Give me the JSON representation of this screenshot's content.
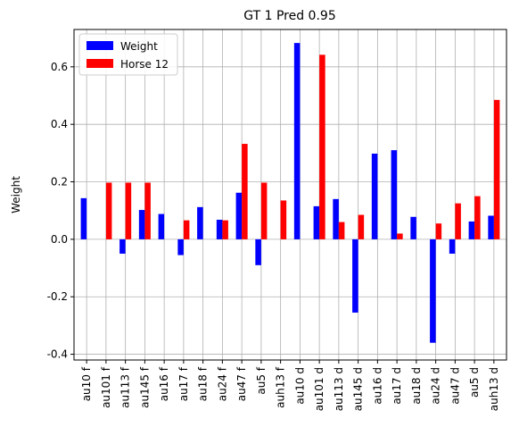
{
  "chart_data": {
    "type": "bar",
    "title": "GT 1 Pred 0.95",
    "xlabel": "",
    "ylabel": "Weight",
    "ylim": [
      -0.42,
      0.73
    ],
    "yticks": [
      "-0.4",
      "-0.2",
      "0.0",
      "0.2",
      "0.4",
      "0.6"
    ],
    "grid": true,
    "legend_position": "upper-left",
    "categories": [
      "au10 f",
      "au101 f",
      "au113 f",
      "au145 f",
      "au16 f",
      "au17 f",
      "au18 f",
      "au24 f",
      "au47 f",
      "au5 f",
      "auh13 f",
      "au10 d",
      "au101 d",
      "au113 d",
      "au145 d",
      "au16 d",
      "au17 d",
      "au18 d",
      "au24 d",
      "au47 d",
      "au5 d",
      "auh13 d"
    ],
    "series": [
      {
        "name": "Weight",
        "color": "#0000ff",
        "values": [
          0.143,
          0.0,
          -0.05,
          0.102,
          0.088,
          -0.055,
          0.112,
          0.068,
          0.162,
          -0.09,
          0.0,
          0.683,
          0.115,
          0.14,
          -0.255,
          0.298,
          0.31,
          0.078,
          -0.36,
          -0.05,
          0.062,
          0.082
        ]
      },
      {
        "name": "Horse 12",
        "color": "#ff0000",
        "values": [
          0.0,
          0.197,
          0.197,
          0.197,
          0.0,
          0.066,
          0.0,
          0.066,
          0.332,
          0.197,
          0.135,
          0.0,
          0.642,
          0.06,
          0.085,
          0.0,
          0.02,
          0.0,
          0.055,
          0.125,
          0.15,
          0.485
        ]
      }
    ]
  }
}
